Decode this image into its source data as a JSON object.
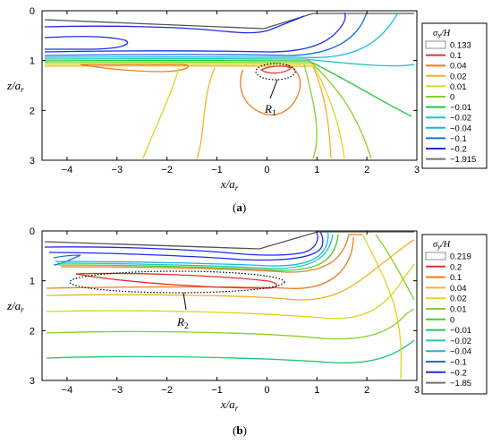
{
  "figure": {
    "panels": [
      {
        "caption_open": "(",
        "caption_letter": "a",
        "caption_close": ")",
        "legend_title_sym": "σ",
        "legend_title_sub": "x",
        "legend_title_den": "/H",
        "region_label": "R",
        "region_sub": "1"
      },
      {
        "caption_open": "(",
        "caption_letter": "b",
        "caption_close": ")",
        "legend_title_sym": "σ",
        "legend_title_sub": "y",
        "legend_title_den": "/H",
        "region_label": "R",
        "region_sub": "2"
      }
    ]
  },
  "chart_data": [
    {
      "type": "contour",
      "xlabel": "x/a",
      "xlabel_sub": "r",
      "ylabel": "z/a",
      "ylabel_sub": "r",
      "xlim": [
        -4.5,
        3
      ],
      "ylim": [
        0,
        3
      ],
      "x_ticks": [
        "−4",
        "−3",
        "−2",
        "−1",
        "0",
        "1",
        "2",
        "3"
      ],
      "y_ticks": [
        "0",
        "1",
        "2",
        "3"
      ],
      "legend": {
        "labels": [
          "0.133",
          "0.1",
          "0.04",
          "0.02",
          "0.01",
          "0",
          "−0.01",
          "−0.02",
          "−0.04",
          "−0.1",
          "−0.2",
          "−1.915"
        ],
        "colors": [
          "#ffffff",
          "#e8302a",
          "#f07d1e",
          "#f2b22a",
          "#d8d81e",
          "#8ccf2c",
          "#1ec83c",
          "#1ec8b4",
          "#18b4e6",
          "#1e6ee0",
          "#1e2ee0",
          "#707070"
        ]
      }
    },
    {
      "type": "contour",
      "xlabel": "x/a",
      "xlabel_sub": "r",
      "ylabel": "z/a",
      "ylabel_sub": "r",
      "xlim": [
        -4.5,
        3
      ],
      "ylim": [
        0,
        3
      ],
      "x_ticks": [
        "−4",
        "−3",
        "−2",
        "−1",
        "0",
        "1",
        "2",
        "3"
      ],
      "y_ticks": [
        "0",
        "1",
        "2",
        "3"
      ],
      "legend": {
        "labels": [
          "0.219",
          "0.2",
          "0.1",
          "0.04",
          "0.02",
          "0.01",
          "0",
          "−0.01",
          "−0.02",
          "−0.04",
          "−0.1",
          "−0.2",
          "−1.85"
        ],
        "colors": [
          "#ffffff",
          "#e8302a",
          "#f07d1e",
          "#f2b22a",
          "#d8d81e",
          "#8ccf2c",
          "#48cc30",
          "#1ec86e",
          "#1ec8b4",
          "#18b4e6",
          "#1e6ee0",
          "#1e2ee0",
          "#707070"
        ]
      }
    }
  ]
}
